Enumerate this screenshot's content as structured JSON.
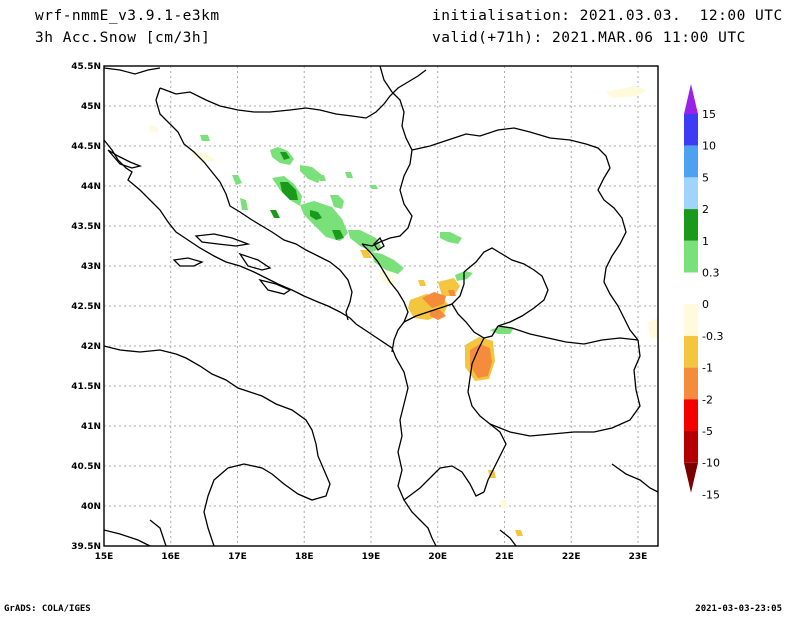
{
  "header": {
    "model": "wrf-nmmE_v3.9.1-e3km",
    "variable": "3h Acc.Snow [cm/3h]",
    "init": "initialisation: 2021.03.03.  12:00 UTC",
    "valid": "valid(+71h): 2021.MAR.06 11:00 UTC"
  },
  "footer": {
    "credit": "GrADS: COLA/IGES",
    "timestamp": "2021-03-03-23:05"
  },
  "axes": {
    "lon_labels": [
      "15E",
      "16E",
      "17E",
      "18E",
      "19E",
      "20E",
      "21E",
      "22E",
      "23E"
    ],
    "lat_labels": [
      "45.5N",
      "45N",
      "44.5N",
      "44N",
      "43.5N",
      "43N",
      "42.5N",
      "42N",
      "41.5N",
      "41N",
      "40.5N",
      "40N",
      "39.5N"
    ],
    "lon_range": [
      15,
      23.3
    ],
    "lat_range": [
      39.5,
      45.5
    ]
  },
  "colorbar": {
    "labels": [
      "15",
      "10",
      "5",
      "2",
      "1",
      "0.3",
      "0",
      "-0.3",
      "-1",
      "-2",
      "-5",
      "-10",
      "-15"
    ],
    "colors": [
      "#9a22e8",
      "#3c3cf4",
      "#4ea0f0",
      "#a0d4fa",
      "#1a9a1a",
      "#7ae07a",
      "#ffffff",
      "#fffadc",
      "#f4c640",
      "#f48c3c",
      "#f40000",
      "#b40000",
      "#7a0000"
    ]
  }
}
